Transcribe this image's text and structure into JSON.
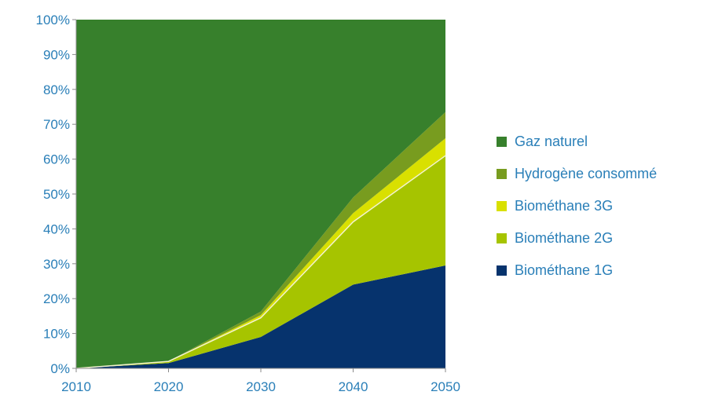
{
  "chart_data": {
    "type": "area",
    "stacked": true,
    "x": [
      2010,
      2020,
      2030,
      2040,
      2050
    ],
    "xticks": [
      "2010",
      "2020",
      "2030",
      "2040",
      "2050"
    ],
    "yticks": [
      "0%",
      "10%",
      "20%",
      "30%",
      "40%",
      "50%",
      "60%",
      "70%",
      "80%",
      "90%",
      "100%"
    ],
    "ylim": [
      0,
      100
    ],
    "grid": false,
    "legend_position": "right",
    "series": [
      {
        "name": "Biométhane 1G",
        "color": "#06336d",
        "values": [
          0,
          1.5,
          9,
          24,
          29.5
        ]
      },
      {
        "name": "Biométhane 2G",
        "color": "#a6c400",
        "values": [
          0,
          0.5,
          5.5,
          18,
          31.5
        ]
      },
      {
        "name": "Biométhane 3G",
        "color": "#d9e000",
        "values": [
          0,
          0,
          0.8,
          2.5,
          5
        ]
      },
      {
        "name": "Hydrogène consommé",
        "color": "#789c1f",
        "values": [
          0,
          0,
          1,
          4.5,
          7.5
        ]
      },
      {
        "name": "Gaz naturel",
        "color": "#37802c",
        "values": [
          100,
          98,
          83.7,
          51,
          26.5
        ]
      }
    ]
  }
}
